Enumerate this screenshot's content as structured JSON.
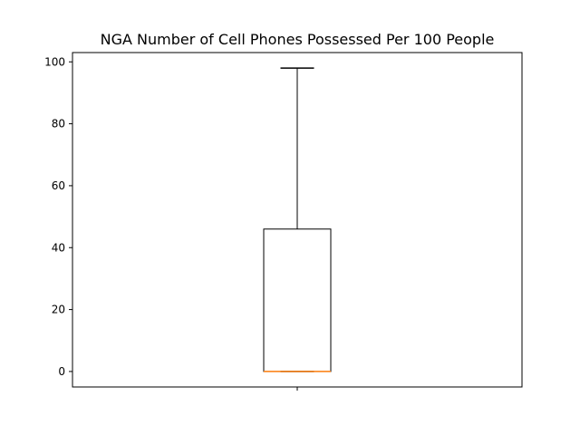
{
  "chart_data": {
    "type": "box",
    "title": "NGA Number of Cell Phones Possessed Per 100 People",
    "xlabel": "",
    "ylabel": "",
    "ylim": [
      -5,
      103
    ],
    "yticks": [
      0,
      20,
      40,
      60,
      80,
      100
    ],
    "grid": false,
    "boxes": [
      {
        "whisker_low": 0,
        "q1": 0,
        "median": 0,
        "q3": 46,
        "whisker_high": 98
      }
    ]
  },
  "colors": {
    "box": "#000000",
    "median": "#ff7f0e",
    "axes": "#000000",
    "background": "#ffffff"
  }
}
